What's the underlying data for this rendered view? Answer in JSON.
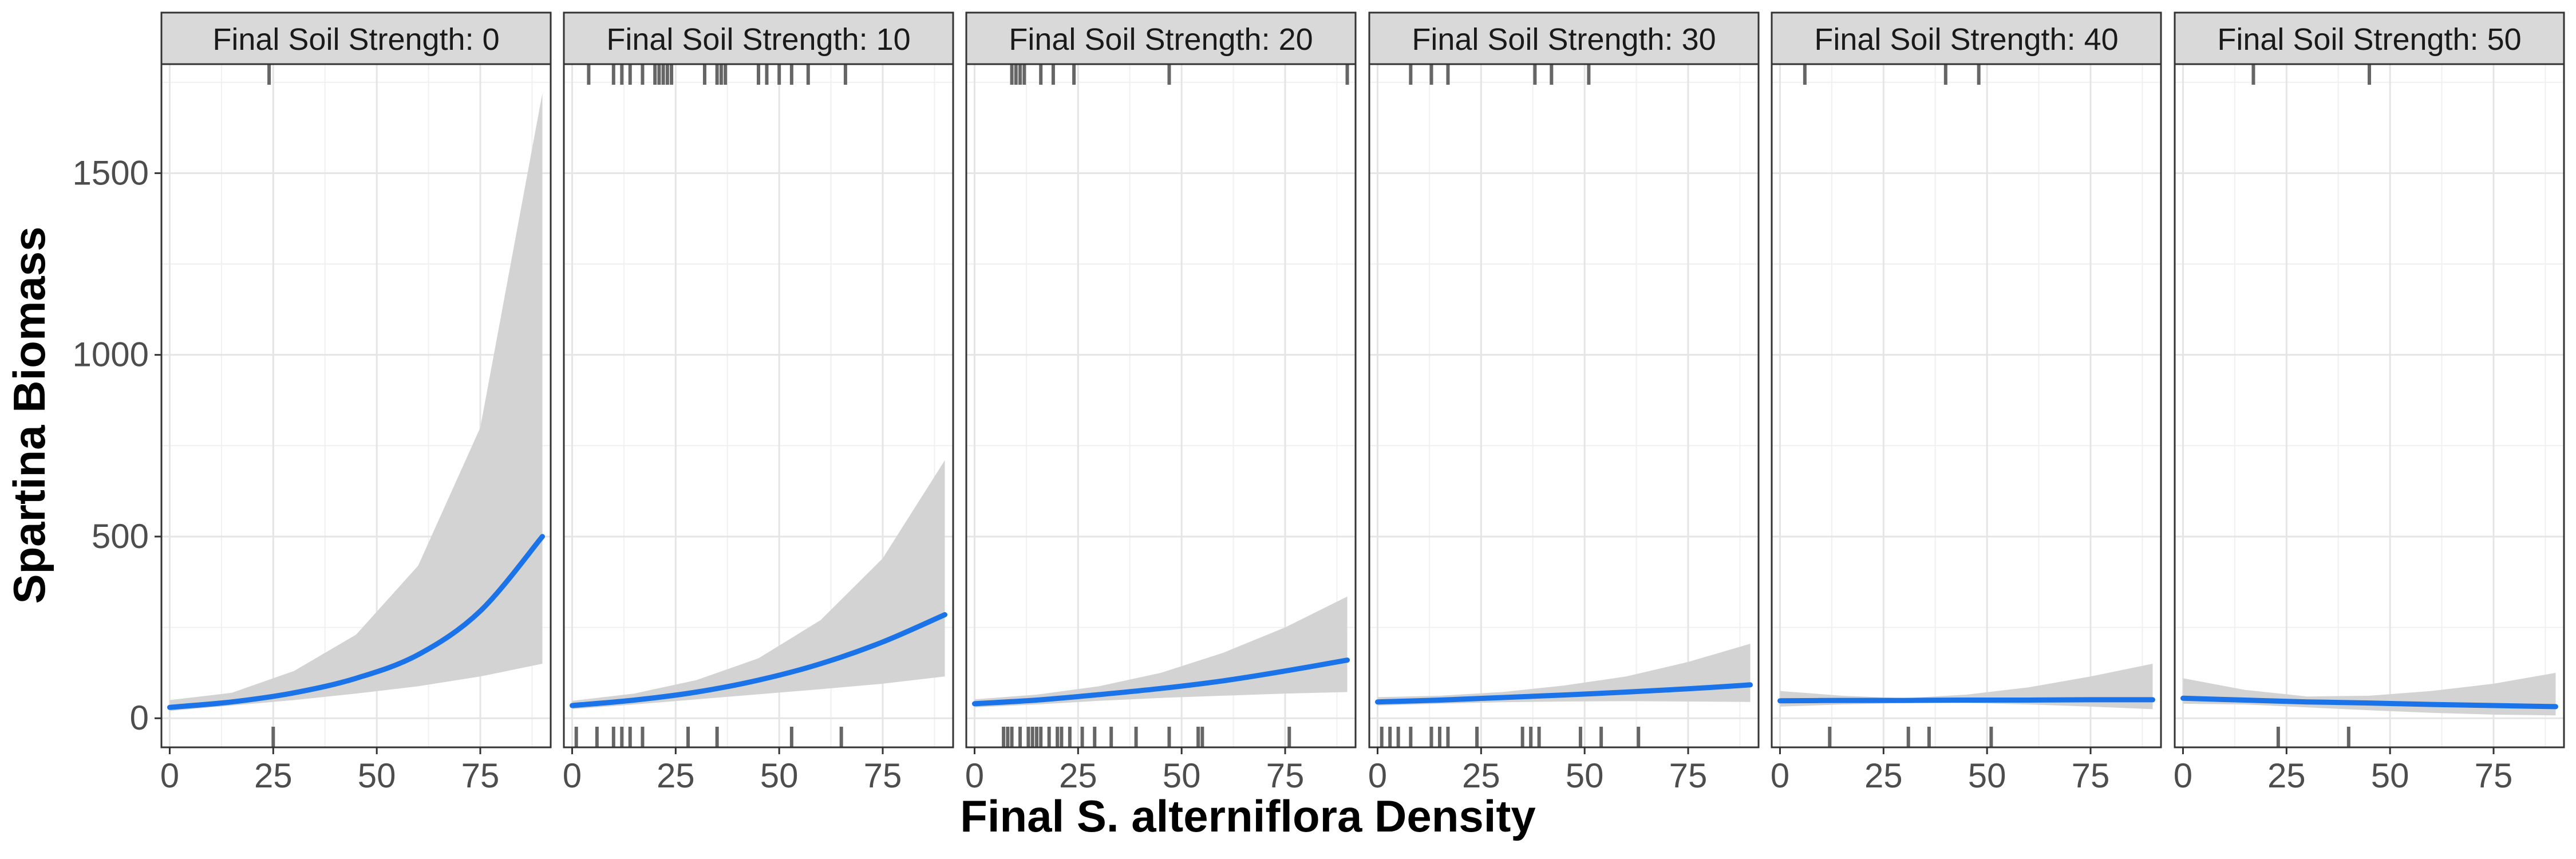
{
  "chart_data": {
    "type": "line",
    "xlabel": "Final S. alterniflora Density",
    "ylabel": "Spartina Biomass",
    "xlim": [
      -2,
      92
    ],
    "ylim": [
      -80,
      1800
    ],
    "x_ticks": [
      0,
      25,
      50,
      75
    ],
    "x_tick_labels": [
      "0",
      "25",
      "50",
      "75"
    ],
    "y_ticks": [
      0,
      500,
      1000,
      1500
    ],
    "y_tick_labels": [
      "0",
      "500",
      "1000",
      "1500"
    ],
    "grid": true,
    "line_color": "#1a73e8",
    "ribbon_color": "#d3d3d3",
    "rug_color": "#666666",
    "strip_color": "#d9d9d9",
    "panels": [
      {
        "strip": "Final Soil Strength: 0",
        "series": [
          {
            "x": [
              0,
              15,
              30,
              45,
              60,
              75,
              90
            ],
            "y": [
              30,
              45,
              70,
              110,
              175,
              295,
              500
            ]
          }
        ],
        "ribbon": {
          "x": [
            0,
            15,
            30,
            45,
            60,
            75,
            90
          ],
          "lower": [
            20,
            35,
            50,
            68,
            88,
            115,
            150
          ],
          "upper": [
            50,
            70,
            130,
            230,
            420,
            800,
            1720
          ]
        },
        "rug_top": [
          24
        ],
        "rug_bottom": [
          25
        ]
      },
      {
        "strip": "Final Soil Strength: 10",
        "series": [
          {
            "x": [
              0,
              15,
              30,
              45,
              60,
              75,
              90
            ],
            "y": [
              35,
              50,
              72,
              105,
              150,
              210,
              285
            ]
          }
        ],
        "ribbon": {
          "x": [
            0,
            15,
            30,
            45,
            60,
            75,
            90
          ],
          "lower": [
            25,
            38,
            52,
            66,
            80,
            95,
            115
          ],
          "upper": [
            48,
            68,
            105,
            165,
            270,
            440,
            710
          ]
        },
        "rug_top": [
          4,
          10,
          12,
          14,
          17,
          20,
          21,
          22,
          23,
          24,
          32,
          35,
          36,
          37,
          45,
          47,
          50,
          53,
          57,
          66
        ],
        "rug_bottom": [
          1,
          6,
          10,
          12,
          14,
          17,
          28,
          35,
          53,
          65
        ]
      },
      {
        "strip": "Final Soil Strength: 20",
        "series": [
          {
            "x": [
              0,
              15,
              30,
              45,
              60,
              75,
              90
            ],
            "y": [
              40,
              50,
              65,
              82,
              103,
              130,
              160
            ]
          }
        ],
        "ribbon": {
          "x": [
            0,
            15,
            30,
            45,
            60,
            75,
            90
          ],
          "lower": [
            30,
            38,
            48,
            56,
            62,
            68,
            72
          ],
          "upper": [
            52,
            65,
            88,
            125,
            180,
            250,
            335
          ]
        },
        "rug_top": [
          9,
          10,
          11,
          12,
          16,
          19,
          24,
          47,
          90
        ],
        "rug_bottom": [
          7,
          8,
          9,
          11,
          13,
          14,
          15,
          16,
          18,
          20,
          21,
          23,
          26,
          29,
          33,
          39,
          47,
          54,
          55,
          76
        ]
      },
      {
        "strip": "Final Soil Strength: 30",
        "series": [
          {
            "x": [
              0,
              15,
              30,
              45,
              60,
              75,
              90
            ],
            "y": [
              45,
              50,
              57,
              64,
              72,
              81,
              92
            ]
          }
        ],
        "ribbon": {
          "x": [
            0,
            15,
            30,
            45,
            60,
            75,
            90
          ],
          "lower": [
            35,
            40,
            44,
            46,
            47,
            46,
            45
          ],
          "upper": [
            58,
            62,
            72,
            90,
            115,
            155,
            205
          ]
        },
        "rug_top": [
          8,
          13,
          17,
          38,
          42,
          51
        ],
        "rug_bottom": [
          1,
          3,
          5,
          8,
          13,
          15,
          17,
          24,
          35,
          37,
          39,
          49,
          54,
          63
        ]
      },
      {
        "strip": "Final Soil Strength: 40",
        "series": [
          {
            "x": [
              0,
              15,
              30,
              45,
              60,
              75,
              90
            ],
            "y": [
              48,
              49,
              49,
              50,
              50,
              51,
              51
            ]
          }
        ],
        "ribbon": {
          "x": [
            0,
            15,
            30,
            45,
            60,
            75,
            90
          ],
          "lower": [
            32,
            38,
            42,
            42,
            38,
            32,
            25
          ],
          "upper": [
            75,
            62,
            55,
            65,
            85,
            115,
            150
          ]
        },
        "rug_top": [
          6,
          40,
          48
        ],
        "rug_bottom": [
          12,
          31,
          36,
          51
        ]
      },
      {
        "strip": "Final Soil Strength: 50",
        "series": [
          {
            "x": [
              0,
              15,
              30,
              45,
              60,
              75,
              90
            ],
            "y": [
              55,
              50,
              45,
              42,
              38,
              35,
              32
            ]
          }
        ],
        "ribbon": {
          "x": [
            0,
            15,
            30,
            45,
            60,
            75,
            90
          ],
          "lower": [
            40,
            38,
            30,
            22,
            15,
            10,
            8
          ],
          "upper": [
            110,
            78,
            60,
            62,
            75,
            95,
            125
          ]
        },
        "rug_top": [
          17,
          45
        ],
        "rug_bottom": [
          23,
          40
        ]
      }
    ]
  }
}
